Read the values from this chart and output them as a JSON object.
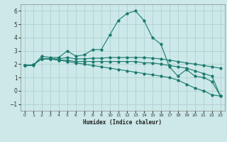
{
  "title": "",
  "xlabel": "Humidex (Indice chaleur)",
  "bg_color": "#cce8e8",
  "grid_color": "#aacccc",
  "line_color": "#1a7a6e",
  "xlim": [
    -0.5,
    23.5
  ],
  "ylim": [
    -1.5,
    6.5
  ],
  "xticks": [
    0,
    1,
    2,
    3,
    4,
    5,
    6,
    7,
    8,
    9,
    10,
    11,
    12,
    13,
    14,
    15,
    16,
    17,
    18,
    19,
    20,
    21,
    22,
    23
  ],
  "yticks": [
    -1,
    0,
    1,
    2,
    3,
    4,
    5,
    6
  ],
  "series": [
    {
      "x": [
        0,
        1,
        2,
        3,
        4,
        5,
        6,
        7,
        8,
        9,
        10,
        11,
        12,
        13,
        14,
        15,
        16,
        17,
        18,
        19,
        20,
        21,
        22,
        23
      ],
      "y": [
        1.9,
        1.9,
        2.6,
        2.5,
        2.5,
        3.0,
        2.6,
        2.7,
        3.1,
        3.1,
        4.2,
        5.3,
        5.8,
        6.0,
        5.3,
        4.0,
        3.5,
        1.8,
        1.1,
        1.6,
        1.1,
        1.0,
        0.7,
        -0.4
      ]
    },
    {
      "x": [
        0,
        1,
        2,
        3,
        4,
        5,
        6,
        7,
        8,
        9,
        10,
        11,
        12,
        13,
        14,
        15,
        16,
        17,
        18,
        19,
        20,
        21,
        22,
        23
      ],
      "y": [
        1.9,
        1.95,
        2.4,
        2.4,
        2.4,
        2.5,
        2.4,
        2.4,
        2.45,
        2.45,
        2.5,
        2.5,
        2.5,
        2.5,
        2.5,
        2.45,
        2.4,
        2.3,
        2.2,
        2.1,
        2.0,
        1.9,
        1.8,
        1.7
      ]
    },
    {
      "x": [
        0,
        1,
        2,
        3,
        4,
        5,
        6,
        7,
        8,
        9,
        10,
        11,
        12,
        13,
        14,
        15,
        16,
        17,
        18,
        19,
        20,
        21,
        22,
        23
      ],
      "y": [
        1.9,
        1.95,
        2.4,
        2.4,
        2.3,
        2.3,
        2.2,
        2.2,
        2.2,
        2.2,
        2.2,
        2.2,
        2.2,
        2.2,
        2.1,
        2.1,
        2.0,
        1.9,
        1.8,
        1.7,
        1.5,
        1.3,
        1.1,
        -0.4
      ]
    },
    {
      "x": [
        0,
        1,
        2,
        3,
        4,
        5,
        6,
        7,
        8,
        9,
        10,
        11,
        12,
        13,
        14,
        15,
        16,
        17,
        18,
        19,
        20,
        21,
        22,
        23
      ],
      "y": [
        1.9,
        1.95,
        2.4,
        2.4,
        2.3,
        2.2,
        2.1,
        2.0,
        1.9,
        1.8,
        1.7,
        1.6,
        1.5,
        1.4,
        1.3,
        1.2,
        1.1,
        1.0,
        0.8,
        0.5,
        0.2,
        0.0,
        -0.3,
        -0.4
      ]
    }
  ]
}
